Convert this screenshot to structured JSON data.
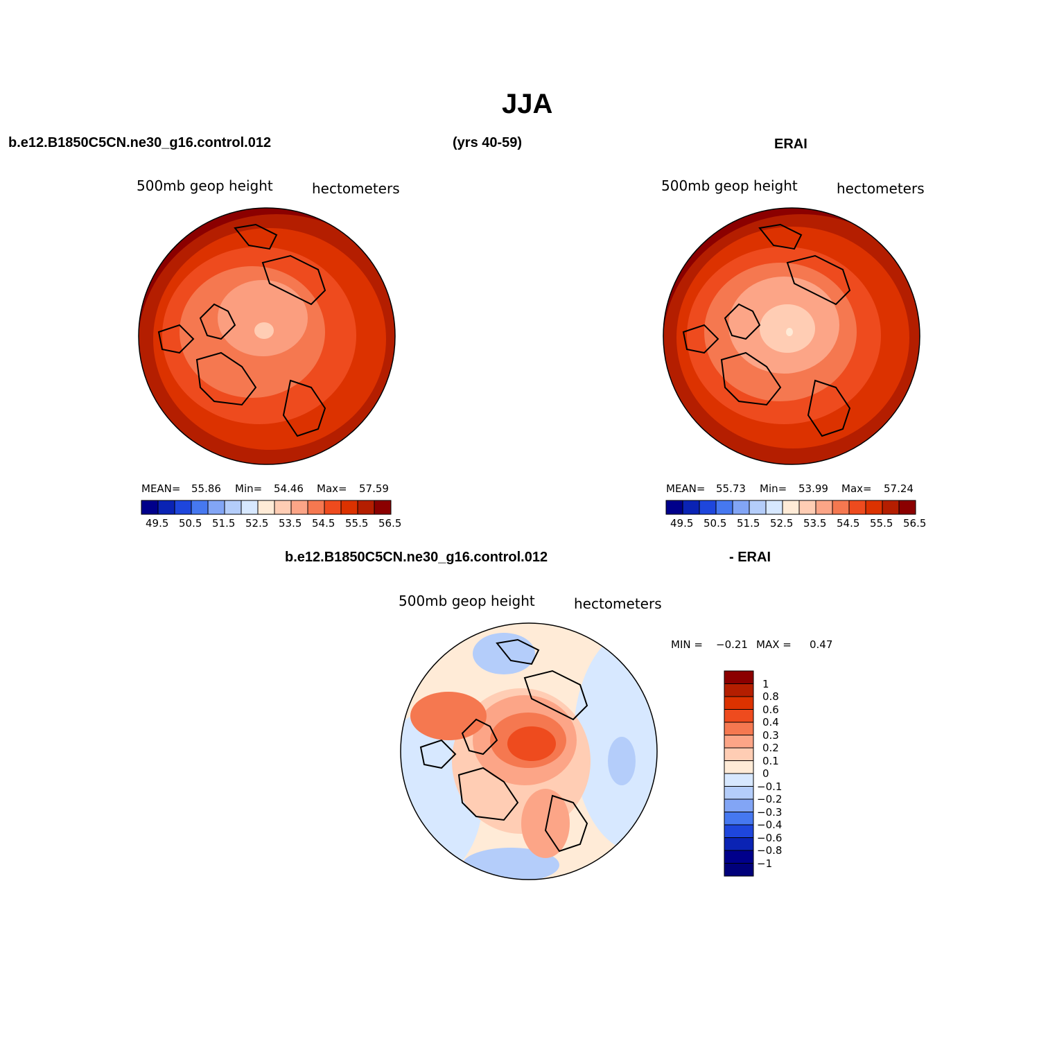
{
  "page": {
    "title": "JJA",
    "case_name": "b.e12.B1850C5CN.ne30_g16.control.012",
    "years": "(yrs 40-59)",
    "obs_name": "ERAI",
    "diff_case_name": "b.e12.B1850C5CN.ne30_g16.control.012",
    "diff_obs_name": "- ERAI"
  },
  "chart_data": [
    {
      "type": "heatmap",
      "panel": "model",
      "title": "500mb geop height",
      "units": "hectometers",
      "stats": {
        "mean_label": "MEAN=",
        "mean": "55.86",
        "min_label": "Min=",
        "min": "54.46",
        "max_label": "Max=",
        "max": "57.59"
      },
      "colorbar_levels": [
        "49.5",
        "50.5",
        "51.5",
        "52.5",
        "53.5",
        "54.5",
        "55.5",
        "56.5"
      ],
      "colors": [
        "#00008b",
        "#0a23b4",
        "#1e46dc",
        "#4678f0",
        "#82a5f5",
        "#b4cdfa",
        "#d7e8ff",
        "#ffebd7",
        "#ffcdb4",
        "#fca587",
        "#f57850",
        "#ee4b1e",
        "#dc3200",
        "#b41e00",
        "#8b0000"
      ]
    },
    {
      "type": "heatmap",
      "panel": "obs",
      "title": "500mb geop height",
      "units": "hectometers",
      "stats": {
        "mean_label": "MEAN=",
        "mean": "55.73",
        "min_label": "Min=",
        "min": "53.99",
        "max_label": "Max=",
        "max": "57.24"
      },
      "colorbar_levels": [
        "49.5",
        "50.5",
        "51.5",
        "52.5",
        "53.5",
        "54.5",
        "55.5",
        "56.5"
      ],
      "colors": [
        "#00008b",
        "#0a23b4",
        "#1e46dc",
        "#4678f0",
        "#82a5f5",
        "#b4cdfa",
        "#d7e8ff",
        "#ffebd7",
        "#ffcdb4",
        "#fca587",
        "#f57850",
        "#ee4b1e",
        "#dc3200",
        "#b41e00",
        "#8b0000"
      ]
    },
    {
      "type": "heatmap",
      "panel": "difference",
      "title": "500mb geop height",
      "units": "hectometers",
      "stats": {
        "min_label": "MIN =",
        "min": "−0.21",
        "max_label": "MAX =",
        "max": "0.47"
      },
      "colorbar_levels": [
        "1",
        "0.8",
        "0.6",
        "0.4",
        "0.3",
        "0.2",
        "0.1",
        "0",
        "−0.1",
        "−0.2",
        "−0.3",
        "−0.4",
        "−0.6",
        "−0.8",
        "−1"
      ],
      "colors": [
        "#8b0000",
        "#b41e00",
        "#dc3200",
        "#ee4b1e",
        "#f57850",
        "#fca587",
        "#ffcdb4",
        "#ffebd7",
        "#d7e8ff",
        "#b4cdfa",
        "#82a5f5",
        "#4678f0",
        "#1e46dc",
        "#0a23b4",
        "#00008b",
        "#00007a"
      ]
    }
  ]
}
